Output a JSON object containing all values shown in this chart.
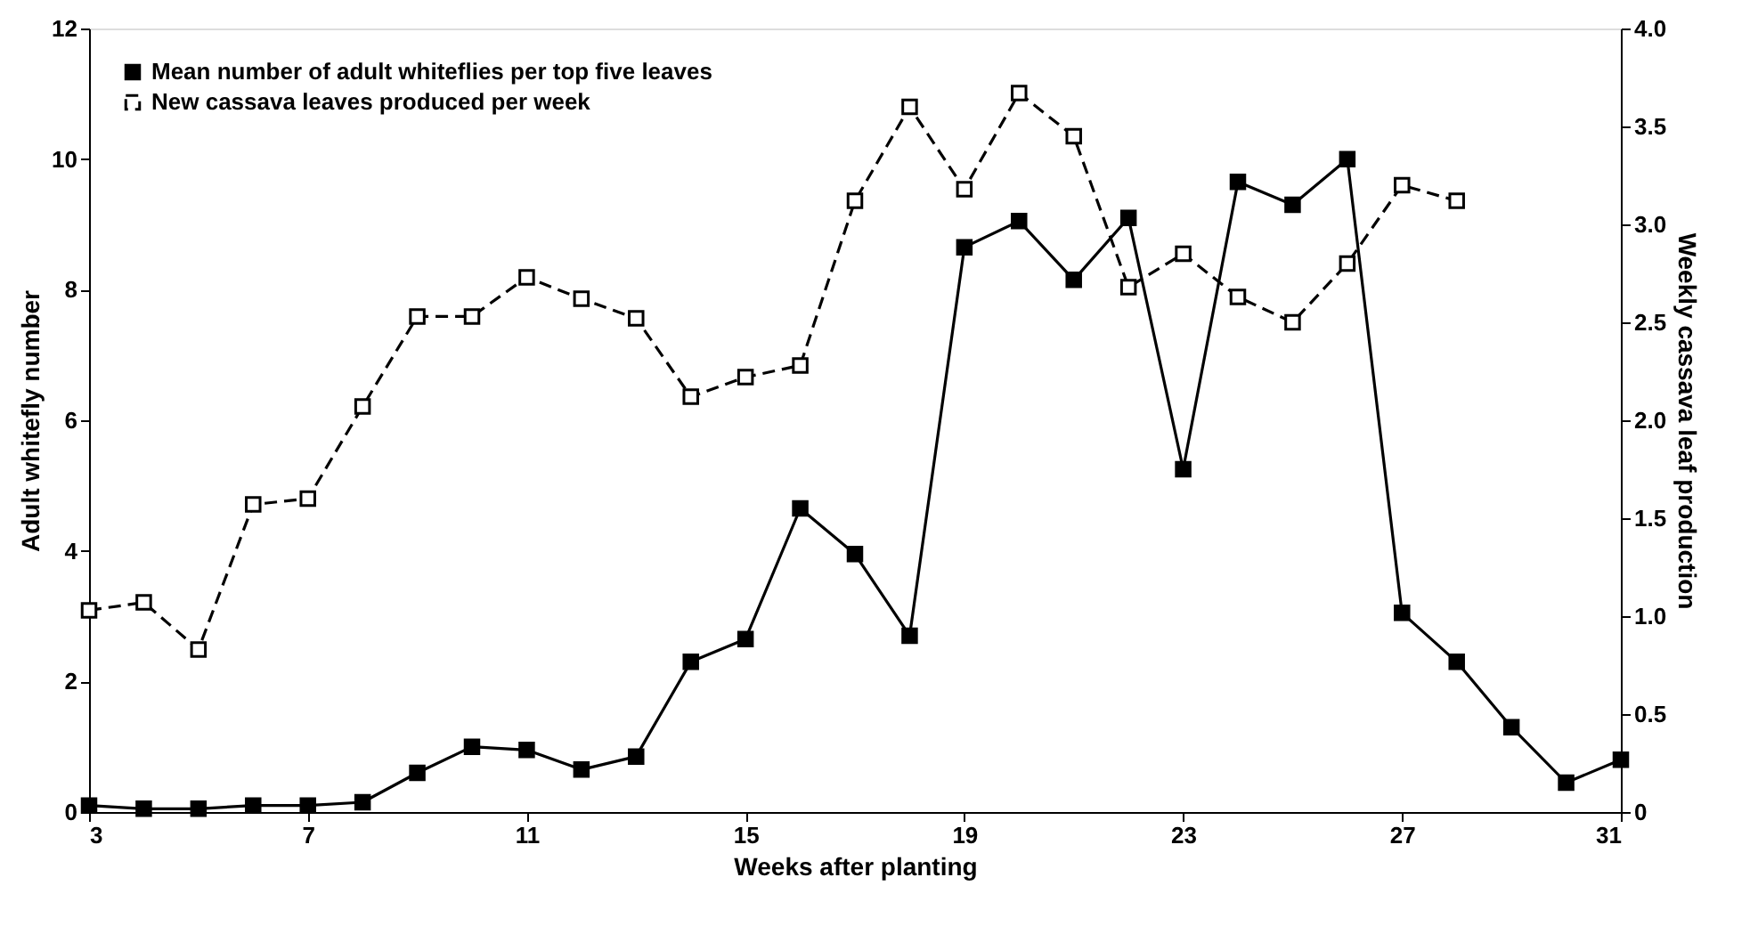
{
  "chart_data": {
    "type": "line",
    "xlabel": "Weeks after planting",
    "ylabel": "Adult whitefly number",
    "y2label": "Weekly cassava leaf production",
    "xlim": [
      3,
      31
    ],
    "xticks": [
      3,
      7,
      11,
      15,
      19,
      23,
      27,
      31
    ],
    "ylim": [
      0,
      12
    ],
    "yticks": [
      0,
      2,
      4,
      6,
      8,
      10,
      12
    ],
    "y2lim": [
      0,
      4
    ],
    "y2ticks": [
      0,
      0.5,
      {
        "value": 1,
        "label": "1.0"
      },
      1.5,
      {
        "value": 2,
        "label": "2.0"
      },
      2.5,
      {
        "value": 3,
        "label": "3.0"
      },
      3.5,
      {
        "value": 4,
        "label": "4.0"
      }
    ],
    "grid": false,
    "legend": "top left",
    "series": [
      {
        "name": "Mean number of adult whiteflies per top five leaves",
        "color": "#000000",
        "line_style": "solid",
        "marker": "square",
        "x": [
          3,
          4,
          5,
          6,
          7,
          8,
          9,
          10,
          11,
          12,
          13,
          14,
          15,
          16,
          17,
          18,
          19,
          20,
          21,
          22,
          23,
          24,
          25,
          26,
          27,
          28,
          29,
          30,
          31
        ],
        "values": [
          0.1,
          0.05,
          0.05,
          0.1,
          0.1,
          0.15,
          0.6,
          1.0,
          0.95,
          0.65,
          0.85,
          2.3,
          2.65,
          4.65,
          3.95,
          2.7,
          8.65,
          9.05,
          8.15,
          9.1,
          5.25,
          9.65,
          9.3,
          10.0,
          3.05,
          2.3,
          1.3,
          0.45,
          0.8
        ]
      },
      {
        "name": "New cassava leaves produced per week",
        "color": "#000000",
        "line_style": "dashed",
        "marker": "square",
        "axis": "y2",
        "x": [
          3,
          4,
          5,
          6,
          7,
          8,
          9,
          10,
          11,
          12,
          13,
          14,
          15,
          16,
          17,
          18,
          19,
          20,
          21,
          22,
          23,
          24,
          25,
          26,
          27,
          28
        ],
        "values": [
          1.03,
          1.07,
          0.83,
          1.57,
          1.6,
          2.07,
          2.53,
          2.53,
          2.73,
          2.62,
          2.52,
          2.12,
          2.22,
          2.28,
          3.12,
          3.6,
          3.18,
          3.67,
          3.45,
          2.68,
          2.85,
          2.63,
          2.5,
          2.8,
          3.2,
          3.12
        ]
      }
    ]
  }
}
